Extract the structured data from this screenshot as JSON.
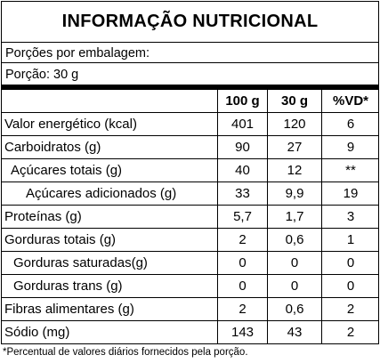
{
  "title": "INFORMAÇÃO NUTRICIONAL",
  "portions_per_package": "Porções por embalagem:",
  "portion": "Porção: 30 g",
  "headers": [
    "100 g",
    "30 g",
    "%VD*"
  ],
  "rows": [
    {
      "name": "Valor energético (kcal)",
      "v100": "401",
      "v30": "120",
      "vd": "6"
    },
    {
      "name": "Carboidratos (g)",
      "v100": "90",
      "v30": "27",
      "vd": "9"
    },
    {
      "name": "Açúcares totais (g)",
      "v100": "40",
      "v30": "12",
      "vd": "**"
    },
    {
      "name": "Açúcares adicionados (g)",
      "v100": "33",
      "v30": "9,9",
      "vd": "19"
    },
    {
      "name": "Proteínas (g)",
      "v100": "5,7",
      "v30": "1,7",
      "vd": "3"
    },
    {
      "name": "Gorduras totais (g)",
      "v100": "2",
      "v30": "0,6",
      "vd": "1"
    },
    {
      "name": "Gorduras saturadas(g)",
      "v100": "0",
      "v30": "0",
      "vd": "0"
    },
    {
      "name": "Gorduras trans (g)",
      "v100": "0",
      "v30": "0",
      "vd": "0"
    },
    {
      "name": "Fibras alimentares (g)",
      "v100": "2",
      "v30": "0,6",
      "vd": "2"
    },
    {
      "name": "Sódio (mg)",
      "v100": "143",
      "v30": "43",
      "vd": "2"
    }
  ],
  "footnote": "*Percentual de valores diários fornecidos pela porção."
}
